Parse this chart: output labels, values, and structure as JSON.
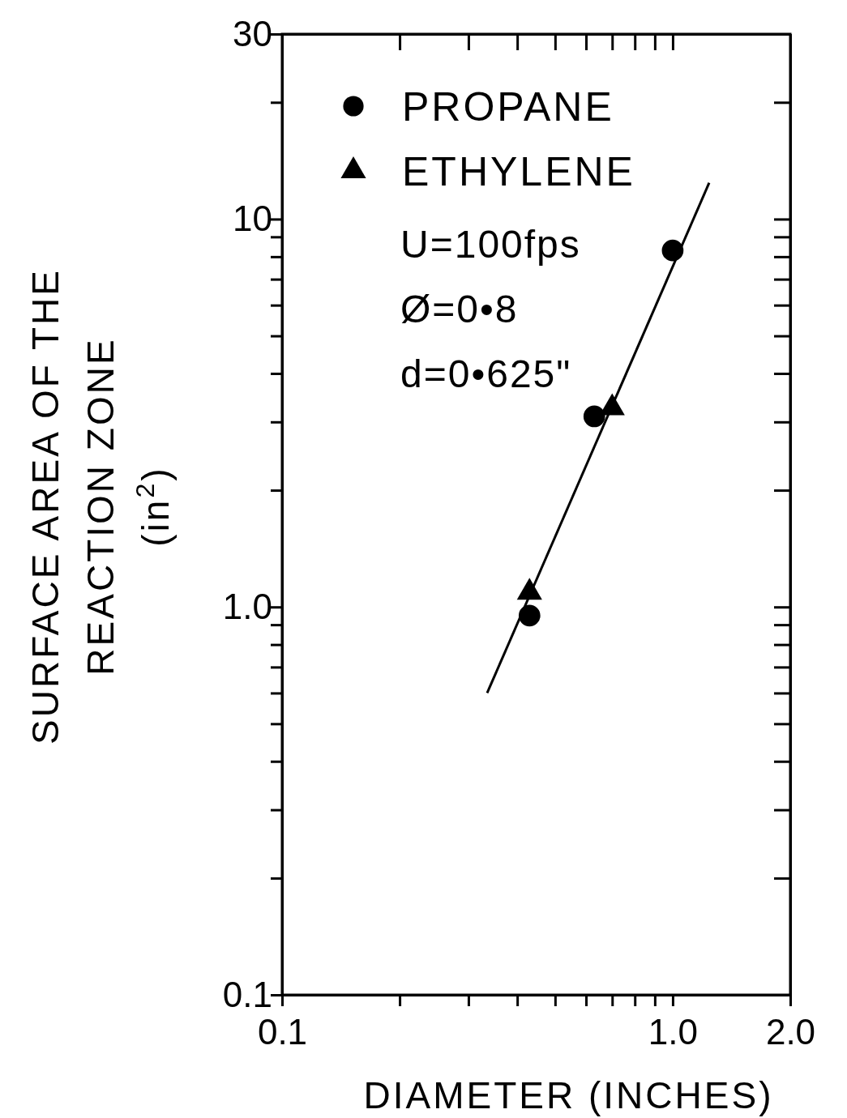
{
  "chart_data": {
    "type": "scatter",
    "xlabel": "DIAMETER (INCHES)",
    "ylabel": "SURFACE AREA OF THE REACTION ZONE (in$^{2}$)",
    "log": "xy",
    "xlim": [
      0.1,
      2.0
    ],
    "ylim": [
      0.1,
      30
    ],
    "xticks": [
      0.1,
      {
        "value": 0.2,
        "label": null
      },
      {
        "value": 0.3,
        "label": null
      },
      {
        "value": 0.4,
        "label": null
      },
      {
        "value": 0.5,
        "label": null
      },
      {
        "value": 0.6,
        "label": null
      },
      {
        "value": 0.7,
        "label": null
      },
      {
        "value": 0.8,
        "label": null
      },
      {
        "value": 0.9,
        "label": null
      },
      {
        "value": 1.0,
        "label": "1.0"
      },
      {
        "value": 2.0,
        "label": "2.0"
      }
    ],
    "yticks": [
      0.1,
      {
        "value": 0.2,
        "label": null
      },
      {
        "value": 0.3,
        "label": null
      },
      {
        "value": 0.4,
        "label": null
      },
      {
        "value": 0.5,
        "label": null
      },
      {
        "value": 0.6,
        "label": null
      },
      {
        "value": 0.7,
        "label": null
      },
      {
        "value": 0.8,
        "label": null
      },
      {
        "value": 0.9,
        "label": null
      },
      {
        "value": 1.0,
        "label": "1.0"
      },
      {
        "value": 2,
        "label": null
      },
      {
        "value": 3,
        "label": null
      },
      {
        "value": 4,
        "label": null
      },
      {
        "value": 5,
        "label": null
      },
      {
        "value": 6,
        "label": null
      },
      {
        "value": 7,
        "label": null
      },
      {
        "value": 8,
        "label": null
      },
      {
        "value": 9,
        "label": null
      },
      {
        "value": 10,
        "label": "10"
      },
      {
        "value": 20,
        "label": null
      },
      {
        "value": 30,
        "label": "30"
      }
    ],
    "grid": false,
    "legend": "top left",
    "annotations": [
      "U=100fps",
      "Ø=0•8",
      "d=0•625\""
    ],
    "series": [
      {
        "name": "PROPANE",
        "color": "#000000",
        "marker": "circle",
        "x": [
          0.43,
          0.63,
          1.0
        ],
        "values": [
          0.95,
          3.1,
          8.3
        ]
      },
      {
        "name": "ETHYLENE",
        "color": "#000000",
        "marker": "triangle",
        "x": [
          0.43,
          0.7
        ],
        "values": [
          1.09,
          3.26
        ]
      },
      {
        "type": "line",
        "color": "#000000",
        "marker": "none",
        "x": [
          0.335,
          1.24
        ],
        "values": [
          0.6,
          12.4
        ]
      }
    ]
  }
}
